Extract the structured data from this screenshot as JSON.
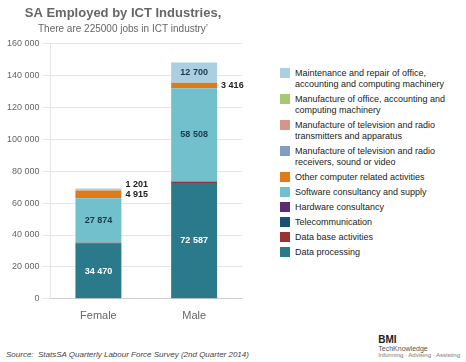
{
  "chart_data": {
    "type": "bar",
    "title": "SA Employed by ICT Industries,",
    "subtitle": "There are 225000 jobs in ICT industry’",
    "annotations": [
      "Source:  StatsSA Quarterly Labour Force Survey (2nd Quarter 2014)",
      "BMI",
      "TechKnowledge",
      "Informing · Advising · Assisting"
    ],
    "categories": [
      "Female",
      "Male"
    ],
    "series": [
      {
        "name": "Data processing",
        "color": "#2B7A8C",
        "values": [
          34470,
          72587
        ],
        "value_labels": [
          "34 470",
          "72 587"
        ]
      },
      {
        "name": "Data base activities",
        "color": "#993333",
        "values": [
          700,
          900
        ]
      },
      {
        "name": "Telecommunication",
        "color": "#1A5276",
        "values": [
          0,
          0
        ]
      },
      {
        "name": "Hardware consultancy",
        "color": "#5B2C6F",
        "values": [
          0,
          0
        ]
      },
      {
        "name": "Software consultancy and supply",
        "color": "#72C0CC",
        "values": [
          27874,
          58508
        ],
        "value_labels": [
          "27 874",
          "58 508"
        ]
      },
      {
        "name": "Other computer related activities",
        "color": "#E07B1A",
        "values": [
          4915,
          3416
        ],
        "value_labels": [
          "4 915",
          "3 416"
        ]
      },
      {
        "name": "Manufacture of television and radio\nreceivers, sound or video",
        "color": "#7F9EC0",
        "values": [
          0,
          0
        ]
      },
      {
        "name": "Manufacture of television and radio\ntransmitters and apparatus",
        "color": "#D4968A",
        "values": [
          0,
          0
        ]
      },
      {
        "name": "Manufacture of office, accounting and\ncomputing machinery",
        "color": "#A8C870",
        "values": [
          0,
          0
        ]
      },
      {
        "name": "Maintenance and repair of office,\naccounting and computing machinery",
        "color": "#AACFE0",
        "values": [
          1201,
          12700
        ],
        "value_labels": [
          "1 201",
          "12 700"
        ]
      }
    ],
    "stacked": true,
    "ylim": [
      0,
      160000
    ],
    "yticks": [
      0,
      {
        "value": 20000,
        "label": "20 000"
      },
      {
        "value": 40000,
        "label": "40 000"
      },
      {
        "value": 60000,
        "label": "60 000"
      },
      {
        "value": 80000,
        "label": "80 000"
      },
      {
        "value": 100000,
        "label": "100 000"
      },
      {
        "value": 120000,
        "label": "120 000"
      },
      {
        "value": 140000,
        "label": "140 000"
      },
      {
        "value": 160000,
        "label": "160 000"
      }
    ],
    "grid": true,
    "legend": "right",
    "data_labels": true
  }
}
